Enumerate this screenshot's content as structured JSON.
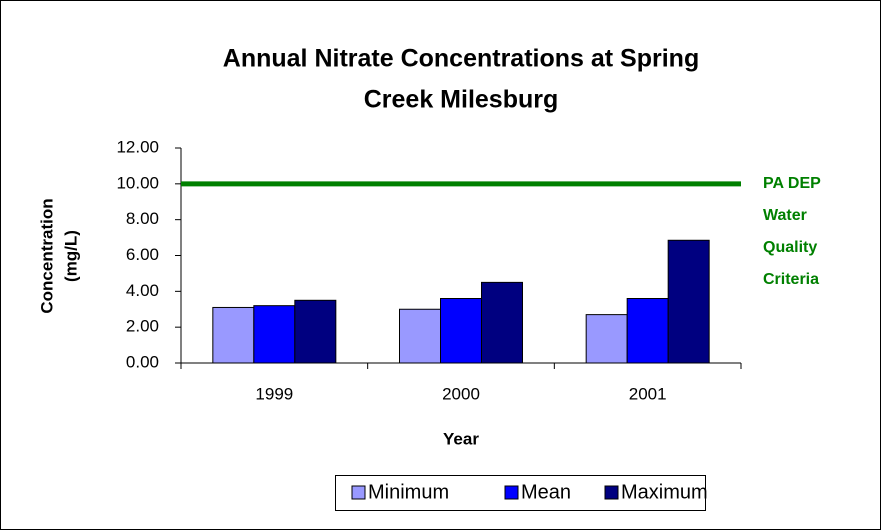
{
  "chart_data": {
    "type": "bar",
    "title": [
      "Annual Nitrate Concentrations at Spring",
      "Creek Milesburg"
    ],
    "x_label": "Year",
    "y_label": [
      "Concentration",
      "(mg/L)"
    ],
    "categories": [
      "1999",
      "2000",
      "2001"
    ],
    "series": [
      {
        "name": "Minimum",
        "color": "#9999ff",
        "values": [
          3.1,
          3.0,
          2.7
        ]
      },
      {
        "name": "Mean",
        "color": "#0000ff",
        "values": [
          3.2,
          3.6,
          3.6
        ]
      },
      {
        "name": "Maximum",
        "color": "#000080",
        "values": [
          3.5,
          4.5,
          6.85
        ]
      }
    ],
    "ylim": [
      0,
      12
    ],
    "yticks": [
      {
        "value": 0,
        "label": "0.00"
      },
      {
        "value": 2,
        "label": "2.00"
      },
      {
        "value": 4,
        "label": "4.00"
      },
      {
        "value": 6,
        "label": "6.00"
      },
      {
        "value": 8,
        "label": "8.00"
      },
      {
        "value": 10,
        "label": "10.00"
      },
      {
        "value": 12,
        "label": "12.00"
      }
    ],
    "reference_line": {
      "value": 10,
      "color": "#008000",
      "label": [
        "PA DEP",
        "Water",
        "Quality",
        "Criteria"
      ]
    },
    "legend": "bottom"
  }
}
